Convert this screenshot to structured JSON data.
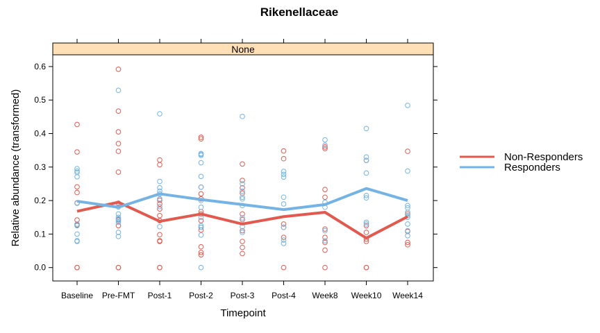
{
  "chart_data": {
    "type": "scatter",
    "title": "Rikenellaceae",
    "panel_label": "None",
    "xlabel": "Timepoint",
    "ylabel": "Relative abundance (transformed)",
    "categories": [
      "Baseline",
      "Pre-FMT",
      "Post-1",
      "Post-2",
      "Post-3",
      "Post-4",
      "Week8",
      "Week10",
      "Week14"
    ],
    "ylim": [
      -0.04,
      0.635
    ],
    "yticks": [
      "0.0",
      "0.1",
      "0.2",
      "0.3",
      "0.4",
      "0.5",
      "0.6"
    ],
    "legend_position": "right",
    "series": [
      {
        "name": "Non-Responders",
        "color": "#e05a4f",
        "mean_line": [
          0.168,
          0.195,
          0.138,
          0.16,
          0.13,
          0.152,
          0.165,
          0.088,
          0.152
        ],
        "points": [
          [
            0.427,
            0.345,
            0.241,
            0.224,
            0.193,
            0.142,
            0.127,
            0.0,
            0.0
          ],
          [
            0.592,
            0.467,
            0.405,
            0.37,
            0.347,
            0.285,
            0.192,
            0.143,
            0.125,
            0.0,
            0.0
          ],
          [
            0.321,
            0.307,
            0.201,
            0.19,
            0.175,
            0.155,
            0.14,
            0.098,
            0.08,
            0.078,
            0.0,
            0.0
          ],
          [
            0.389,
            0.384,
            0.24,
            0.22,
            0.205,
            0.167,
            0.16,
            0.14,
            0.12,
            0.112,
            0.062,
            0.045,
            0.038
          ],
          [
            0.309,
            0.26,
            0.238,
            0.222,
            0.16,
            0.143,
            0.11,
            0.078,
            0.06,
            0.042
          ],
          [
            0.348,
            0.325,
            0.13,
            0.12,
            0.09,
            0.0
          ],
          [
            0.36,
            0.355,
            0.233,
            0.21,
            0.115,
            0.09,
            0.075,
            0.052,
            0.0
          ],
          [
            0.32,
            0.125,
            0.105,
            0.085,
            0.078,
            0.0,
            0.0
          ],
          [
            0.347,
            0.16,
            0.108,
            0.075,
            0.068
          ]
        ]
      },
      {
        "name": "Responders",
        "color": "#74b3e3",
        "mean_line": [
          0.198,
          0.18,
          0.22,
          0.203,
          0.188,
          0.173,
          0.188,
          0.236,
          0.2
        ],
        "points": [
          [
            0.295,
            0.288,
            0.284,
            0.271,
            0.192,
            0.13,
            0.125,
            0.1,
            0.08,
            0.078
          ],
          [
            0.529,
            0.181,
            0.16,
            0.15,
            0.145,
            0.14,
            0.135,
            0.105,
            0.093
          ],
          [
            0.459,
            0.257,
            0.238,
            0.228,
            0.22,
            0.205,
            0.182,
            0.122
          ],
          [
            0.34,
            0.338,
            0.335,
            0.313,
            0.272,
            0.24,
            0.2,
            0.18,
            0.15,
            0.125,
            0.12,
            0.097,
            0.0
          ],
          [
            0.451,
            0.25,
            0.228,
            0.21,
            0.205,
            0.185,
            0.148,
            0.122,
            0.105
          ],
          [
            0.287,
            0.278,
            0.27,
            0.21,
            0.19,
            0.12,
            0.082,
            0.072
          ],
          [
            0.381,
            0.365,
            0.195,
            0.18,
            0.11,
            0.08
          ],
          [
            0.415,
            0.33,
            0.32,
            0.282,
            0.215,
            0.208,
            0.135,
            0.13
          ],
          [
            0.484,
            0.288,
            0.185,
            0.178,
            0.165,
            0.155,
            0.15,
            0.13,
            0.11,
            0.095
          ]
        ]
      }
    ]
  }
}
